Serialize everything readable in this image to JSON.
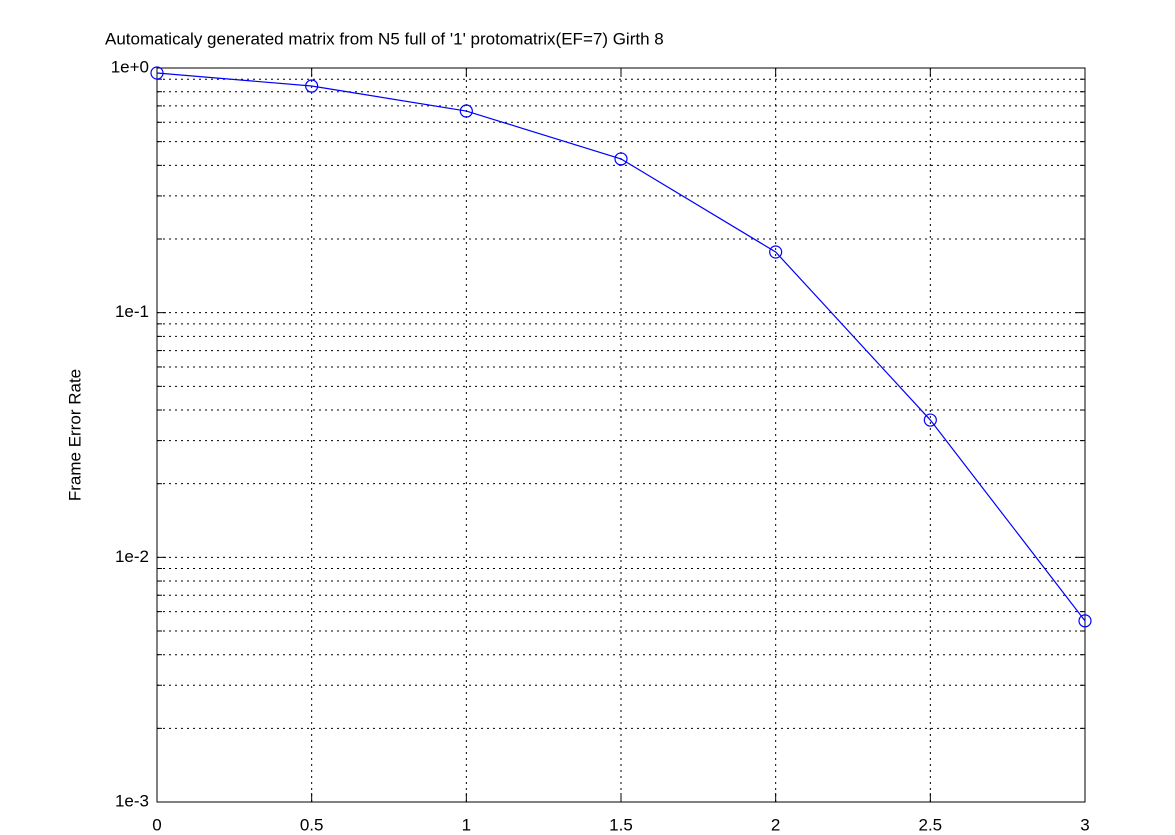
{
  "chart_data": {
    "type": "line",
    "title": "Automaticaly generated matrix from N5 full of '1' protomatrix(EF=7) Girth 8",
    "y_label": "Frame Error Rate",
    "x": [
      0,
      0.5,
      1,
      1.5,
      2,
      2.5,
      3
    ],
    "series": [
      {
        "color": "#0000ff",
        "marker": "circle",
        "values": [
          0.954,
          0.844,
          0.667,
          0.425,
          0.177,
          0.0364,
          0.0055
        ]
      }
    ],
    "xlim": [
      0,
      3
    ],
    "xticks": [
      0,
      0.5,
      1,
      1.5,
      2,
      2.5,
      3
    ],
    "ylim": [
      0.001,
      1
    ],
    "yticks": [
      {
        "value": 0.001,
        "label": "1e-3"
      },
      {
        "value": 0.01,
        "label": "1e-2"
      },
      {
        "value": 0.1,
        "label": "1e-1"
      },
      {
        "value": 1,
        "label": "1e+0"
      }
    ],
    "y_scale": "log",
    "grid": true
  }
}
